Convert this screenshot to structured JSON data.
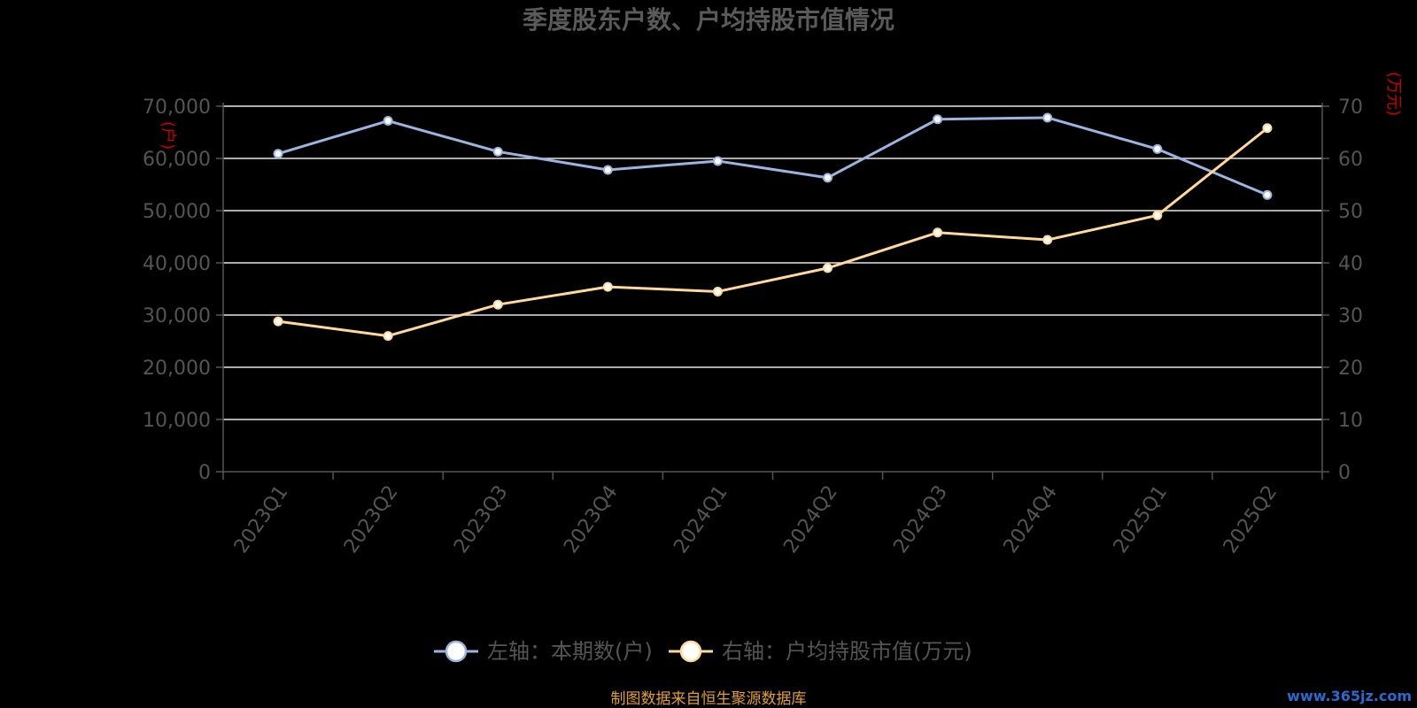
{
  "chart_data": {
    "type": "line",
    "title": "季度股东户数、户均持股市值情况",
    "categories": [
      "2023Q1",
      "2023Q2",
      "2023Q3",
      "2023Q4",
      "2024Q1",
      "2024Q2",
      "2024Q3",
      "2024Q4",
      "2025Q1",
      "2025Q2"
    ],
    "left_axis": {
      "unit": "(户)",
      "ylim": [
        0,
        70000
      ],
      "ticks": [
        "0",
        "10,000",
        "20,000",
        "30,000",
        "40,000",
        "50,000",
        "60,000",
        "70,000"
      ]
    },
    "right_axis": {
      "unit": "(万元)",
      "ylim": [
        0,
        70
      ],
      "ticks": [
        "0",
        "10",
        "20",
        "30",
        "40",
        "50",
        "60",
        "70"
      ]
    },
    "series": [
      {
        "name": "左轴：本期数(户)",
        "axis": "left",
        "color": "#9bb5e0",
        "values": [
          60900,
          67200,
          61300,
          57800,
          59500,
          56300,
          67500,
          67800,
          61800,
          53000
        ]
      },
      {
        "name": "右轴：户均持股市值(万元)",
        "axis": "right",
        "color": "#ffd89a",
        "values": [
          28.8,
          26.0,
          32.0,
          35.4,
          34.5,
          39.0,
          45.8,
          44.4,
          49.1,
          65.8
        ]
      }
    ],
    "grid": true,
    "legend_position": "bottom"
  },
  "source_note": "制图数据来自恒生聚源数据库",
  "watermark": "www.365jz.com"
}
